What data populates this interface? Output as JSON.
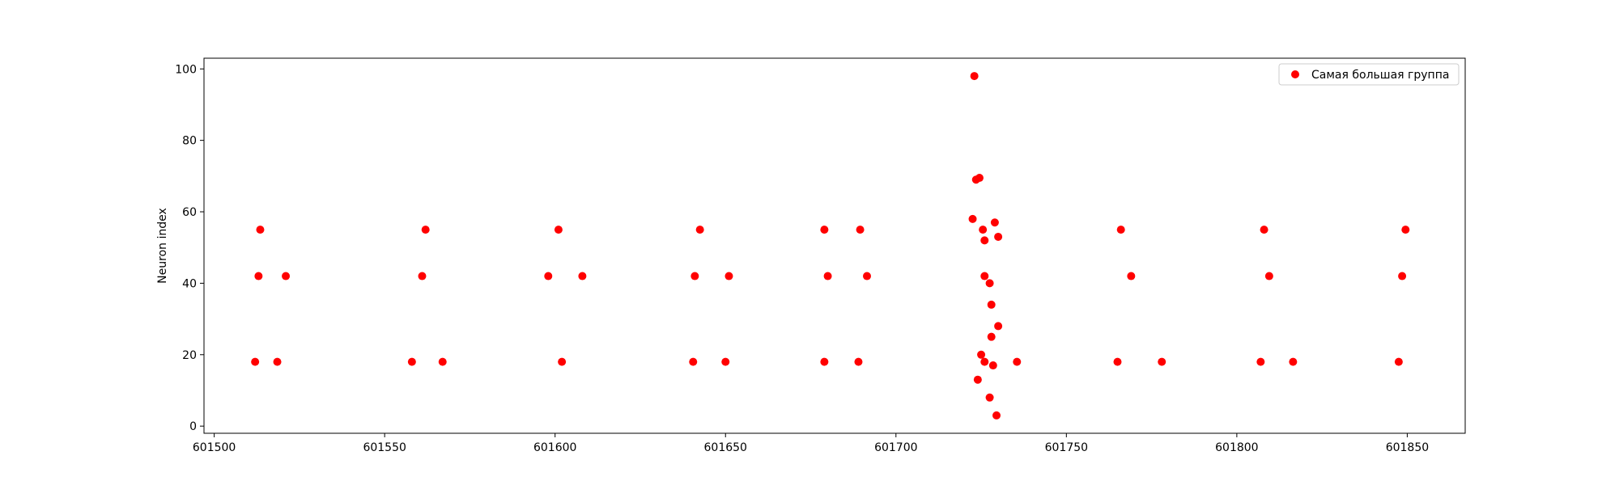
{
  "chart_data": {
    "type": "scatter",
    "title": "",
    "xlabel": "",
    "ylabel": "Neuron index",
    "xlim": [
      601497,
      601867
    ],
    "ylim": [
      -2,
      103
    ],
    "x_ticks": [
      601500,
      601550,
      601600,
      601650,
      601700,
      601750,
      601800,
      601850
    ],
    "y_ticks": [
      0,
      20,
      40,
      60,
      80,
      100
    ],
    "grid": false,
    "legend_position": "top-right",
    "series": [
      {
        "name": "Самая большая группа",
        "color": "#ff0000",
        "points": [
          [
            601512,
            18
          ],
          [
            601513,
            42
          ],
          [
            601513.5,
            55
          ],
          [
            601518.5,
            18
          ],
          [
            601521,
            42
          ],
          [
            601558,
            18
          ],
          [
            601561,
            42
          ],
          [
            601562,
            55
          ],
          [
            601567,
            18
          ],
          [
            601598,
            42
          ],
          [
            601601,
            55
          ],
          [
            601602,
            18
          ],
          [
            601608,
            42
          ],
          [
            601640.5,
            18
          ],
          [
            601641,
            42
          ],
          [
            601642.5,
            55
          ],
          [
            601650,
            18
          ],
          [
            601651,
            42
          ],
          [
            601679,
            18
          ],
          [
            601679,
            55
          ],
          [
            601680,
            42
          ],
          [
            601689,
            18
          ],
          [
            601689.5,
            55
          ],
          [
            601691.5,
            42
          ],
          [
            601722.5,
            58
          ],
          [
            601723,
            98
          ],
          [
            601723.5,
            69
          ],
          [
            601724,
            13
          ],
          [
            601724.5,
            69.5
          ],
          [
            601725,
            20
          ],
          [
            601725.5,
            55
          ],
          [
            601726,
            52
          ],
          [
            601726,
            42
          ],
          [
            601726,
            18
          ],
          [
            601727.5,
            8
          ],
          [
            601727.5,
            40
          ],
          [
            601728,
            25
          ],
          [
            601728,
            34
          ],
          [
            601728.5,
            17
          ],
          [
            601729,
            57
          ],
          [
            601729.5,
            3
          ],
          [
            601730,
            28
          ],
          [
            601730,
            53
          ],
          [
            601735.5,
            18
          ],
          [
            601765,
            18
          ],
          [
            601766,
            55
          ],
          [
            601769,
            42
          ],
          [
            601778,
            18
          ],
          [
            601807,
            18
          ],
          [
            601808,
            55
          ],
          [
            601809.5,
            42
          ],
          [
            601816.5,
            18
          ],
          [
            601847.5,
            18
          ],
          [
            601848.5,
            42
          ],
          [
            601849.5,
            55
          ]
        ]
      }
    ]
  }
}
